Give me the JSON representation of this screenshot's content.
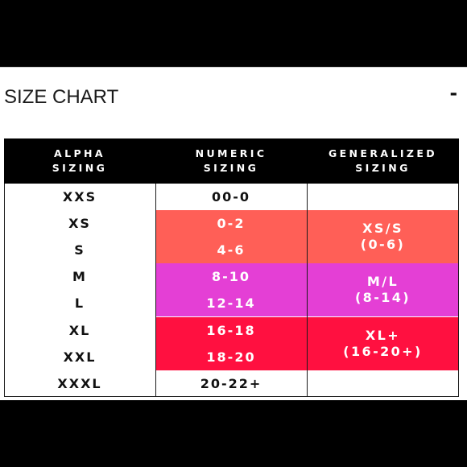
{
  "section": {
    "title": "SIZE CHART",
    "collapse_label": "-"
  },
  "colors": {
    "coral": "#ff5f57",
    "magenta": "#e43fd5",
    "red": "#ff1040",
    "header_bg": "#000000"
  },
  "table": {
    "headers": [
      {
        "line1": "ALPHA",
        "line2": "SIZING"
      },
      {
        "line1": "NUMERIC",
        "line2": "SIZING"
      },
      {
        "line1": "GENERALIZED",
        "line2": "SIZING"
      }
    ],
    "rows": [
      {
        "alpha": "XXS",
        "numeric": "00-0",
        "color": "none"
      },
      {
        "alpha": "XS",
        "numeric": "0-2",
        "color": "coral"
      },
      {
        "alpha": "S",
        "numeric": "4-6",
        "color": "coral"
      },
      {
        "alpha": "M",
        "numeric": "8-10",
        "color": "magenta"
      },
      {
        "alpha": "L",
        "numeric": "12-14",
        "color": "magenta"
      },
      {
        "alpha": "XL",
        "numeric": "16-18",
        "color": "red"
      },
      {
        "alpha": "XXL",
        "numeric": "18-20",
        "color": "red"
      },
      {
        "alpha": "XXXL",
        "numeric": "20-22+",
        "color": "none"
      }
    ],
    "generalized": [
      {
        "line1": "XS/S",
        "line2": "(0-6)",
        "color": "coral"
      },
      {
        "line1": "M/L",
        "line2": "(8-14)",
        "color": "magenta"
      },
      {
        "line1": "XL+",
        "line2": "(16-20+)",
        "color": "red"
      }
    ]
  }
}
